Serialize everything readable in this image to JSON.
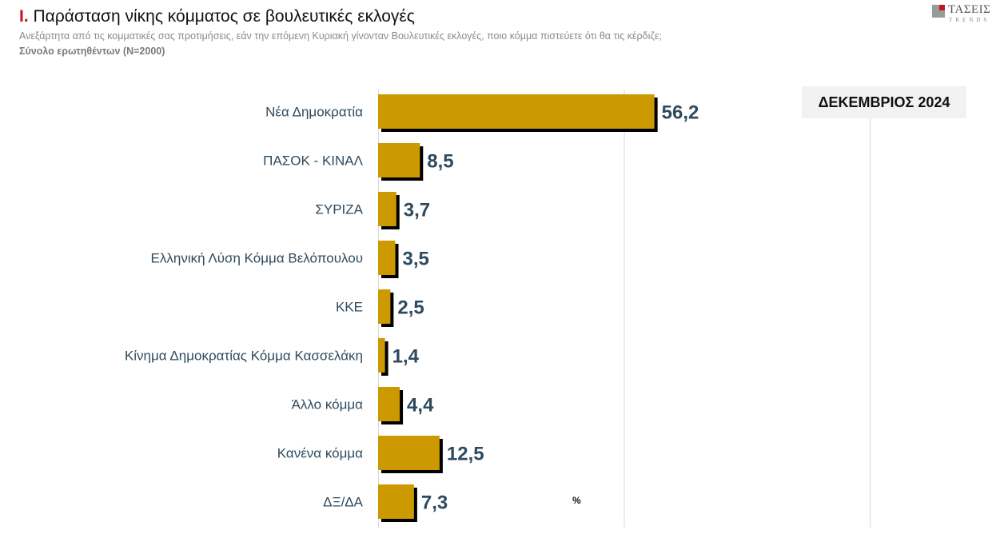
{
  "header": {
    "title_number": "I.",
    "title_text": "Παράσταση νίκης κόμματος σε βουλευτικές εκλογές",
    "subtitle": "Ανεξάρτητα από τις κομματικές σας προτιμήσεις, εάν την επόμενη Κυριακή γίνονταν Βουλευτικές εκλογές, ποιο κόμμα πιστεύετε ότι θα τις κέρδιζε;",
    "base": "Σύνολο ερωτηθέντων (N=2000)"
  },
  "logo": {
    "name": "ΤΑΣΕΙΣ",
    "sub": "TRENDS"
  },
  "badge": "ΔΕΚΕΜΒΡΙΟΣ 2024",
  "unit": "%",
  "colors": {
    "bar": "#cc9900",
    "shadow": "#000000",
    "label": "#2e4a5e",
    "grid": "#d9d9d9",
    "accent": "#c0161e"
  },
  "chart_data": {
    "type": "bar",
    "orientation": "horizontal",
    "categories": [
      "Νέα Δημοκρατία",
      "ΠΑΣΟΚ - ΚΙΝΑΛ",
      "ΣΥΡΙΖΑ",
      "Ελληνική Λύση Κόμμα Βελόπουλου",
      "ΚΚΕ",
      "Κίνημα Δημοκρατίας Κόμμα Κασσελάκη",
      "Άλλο κόμμα",
      "Κανένα κόμμα",
      "ΔΞ/ΔΑ"
    ],
    "values": [
      56.2,
      8.5,
      3.7,
      3.5,
      2.5,
      1.4,
      4.4,
      12.5,
      7.3
    ],
    "value_labels": [
      "56,2",
      "8,5",
      "3,7",
      "3,5",
      "2,5",
      "1,4",
      "4,4",
      "12,5",
      "7,3"
    ],
    "xlim": [
      0,
      100
    ],
    "grid": true
  }
}
